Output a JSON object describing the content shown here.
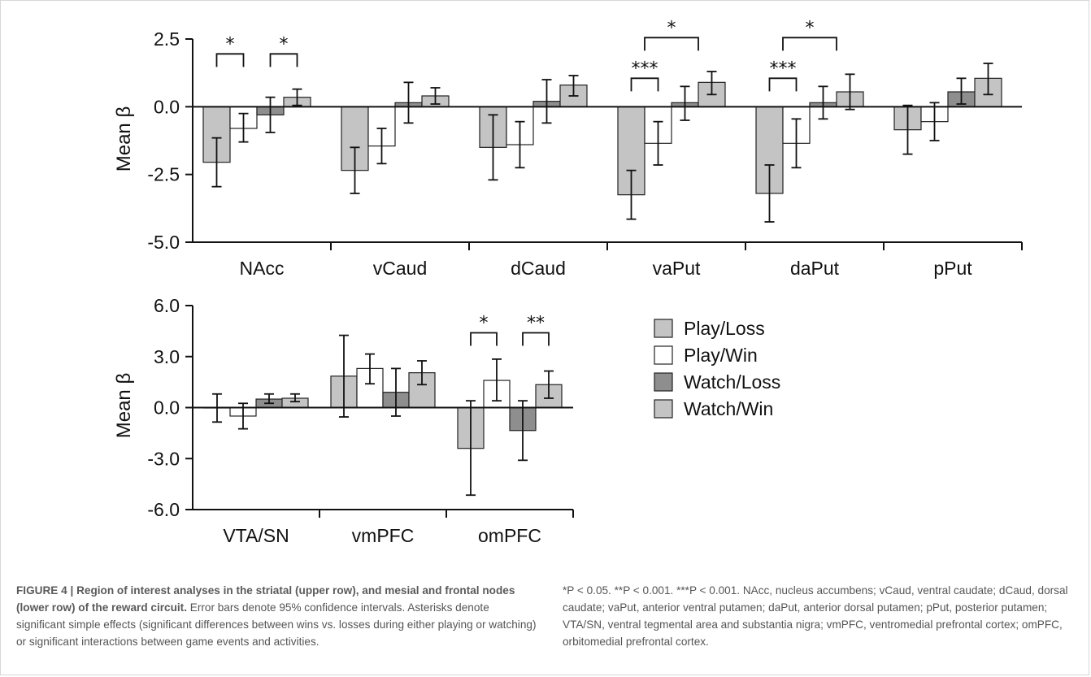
{
  "figure_caption": {
    "label": "FIGURE 4 |",
    "title": "Region of interest analyses in the striatal (upper row), and mesial and frontal nodes (lower row) of the reward circuit.",
    "body": "Error bars denote 95% confidence intervals. Asterisks denote significant simple effects (significant differences between wins vs. losses during either playing or watching) or significant interactions between game events and activities.",
    "footnote": "*P < 0.05. **P < 0.001. ***P < 0.001. NAcc, nucleus accumbens; vCaud, ventral caudate; dCaud, dorsal caudate; vaPut, anterior ventral putamen; daPut, anterior dorsal putamen; pPut, posterior putamen; VTA/SN, ventral tegmental area and substantia nigra; vmPFC, ventromedial prefrontal cortex; omPFC, orbitomedial prefrontal cortex."
  },
  "colors": {
    "play_loss": "#c4c4c4",
    "play_win": "#ffffff",
    "watch_loss": "#8e8e8e",
    "watch_win": "#c4c4c4"
  },
  "legend": [
    {
      "name": "Play/Loss",
      "color": "#c4c4c4"
    },
    {
      "name": "Play/Win",
      "color": "#ffffff"
    },
    {
      "name": "Watch/Loss",
      "color": "#8e8e8e"
    },
    {
      "name": "Watch/Win",
      "color": "#c4c4c4"
    }
  ],
  "chart_data": [
    {
      "type": "bar",
      "ylabel": "Mean β",
      "ylim": [
        -5.0,
        2.5
      ],
      "yticks": [
        "2.5",
        "0.0",
        "-2.5",
        "-5.0"
      ],
      "ytick_values": [
        2.5,
        0.0,
        -2.5,
        -5.0
      ],
      "categories": [
        "NAcc",
        "vCaud",
        "dCaud",
        "vaPut",
        "daPut",
        "pPut"
      ],
      "series": [
        {
          "name": "Play/Loss",
          "values": [
            -2.05,
            -2.35,
            -1.5,
            -3.25,
            -3.2,
            -0.85
          ],
          "err_low": [
            -2.95,
            -3.2,
            -2.7,
            -4.15,
            -4.25,
            -1.75
          ],
          "err_high": [
            -1.15,
            -1.5,
            -0.3,
            -2.35,
            -2.15,
            0.05
          ]
        },
        {
          "name": "Play/Win",
          "values": [
            -0.8,
            -1.45,
            -1.4,
            -1.35,
            -1.35,
            -0.55
          ],
          "err_low": [
            -1.3,
            -2.1,
            -2.25,
            -2.15,
            -2.25,
            -1.25
          ],
          "err_high": [
            -0.25,
            -0.8,
            -0.55,
            -0.55,
            -0.45,
            0.15
          ]
        },
        {
          "name": "Watch/Loss",
          "values": [
            -0.3,
            0.15,
            0.2,
            0.15,
            0.15,
            0.55
          ],
          "err_low": [
            -0.95,
            -0.6,
            -0.6,
            -0.5,
            -0.45,
            0.1
          ],
          "err_high": [
            0.35,
            0.9,
            1.0,
            0.75,
            0.75,
            1.05
          ]
        },
        {
          "name": "Watch/Win",
          "values": [
            0.35,
            0.4,
            0.8,
            0.9,
            0.55,
            1.05
          ],
          "err_low": [
            0.05,
            0.1,
            0.4,
            0.45,
            -0.1,
            0.45
          ],
          "err_high": [
            0.65,
            0.7,
            1.15,
            1.3,
            1.2,
            1.6
          ]
        }
      ],
      "annotations": [
        {
          "label": "*",
          "bracket": [
            0,
            0,
            0,
            1
          ],
          "level": 1.95
        },
        {
          "label": "*",
          "bracket": [
            0,
            2,
            0,
            3
          ],
          "level": 1.95
        },
        {
          "label": "***",
          "bracket": [
            3,
            0,
            3,
            1
          ],
          "level": 1.05
        },
        {
          "label": "*",
          "bracket": [
            3,
            1,
            3,
            3
          ],
          "level": 2.55,
          "nested": true
        },
        {
          "label": "***",
          "bracket": [
            4,
            0,
            4,
            1
          ],
          "level": 1.05
        },
        {
          "label": "*",
          "bracket": [
            4,
            1,
            4,
            3
          ],
          "level": 2.55,
          "nested": true
        }
      ]
    },
    {
      "type": "bar",
      "ylabel": "Mean β",
      "ylim": [
        -6.0,
        6.0
      ],
      "yticks": [
        "6.0",
        "3.0",
        "0.0",
        "-3.0",
        "-6.0"
      ],
      "ytick_values": [
        6.0,
        3.0,
        0.0,
        -3.0,
        -6.0
      ],
      "categories": [
        "VTA/SN",
        "vmPFC",
        "omPFC"
      ],
      "series": [
        {
          "name": "Play/Loss",
          "values": [
            0.0,
            1.85,
            -2.4
          ],
          "err_low": [
            -0.85,
            -0.55,
            -5.15
          ],
          "err_high": [
            0.8,
            4.25,
            0.4
          ]
        },
        {
          "name": "Play/Win",
          "values": [
            -0.5,
            2.3,
            1.6
          ],
          "err_low": [
            -1.25,
            1.4,
            0.4
          ],
          "err_high": [
            0.25,
            3.15,
            2.85
          ]
        },
        {
          "name": "Watch/Loss",
          "values": [
            0.5,
            0.9,
            -1.35
          ],
          "err_low": [
            0.25,
            -0.5,
            -3.1
          ],
          "err_high": [
            0.8,
            2.3,
            0.4
          ]
        },
        {
          "name": "Watch/Win",
          "values": [
            0.55,
            2.05,
            1.35
          ],
          "err_low": [
            0.35,
            1.35,
            0.55
          ],
          "err_high": [
            0.8,
            2.75,
            2.15
          ]
        }
      ],
      "annotations": [
        {
          "label": "*",
          "bracket": [
            2,
            0,
            2,
            1
          ],
          "level": 4.4
        },
        {
          "label": "**",
          "bracket": [
            2,
            2,
            2,
            3
          ],
          "level": 4.4
        }
      ]
    }
  ]
}
